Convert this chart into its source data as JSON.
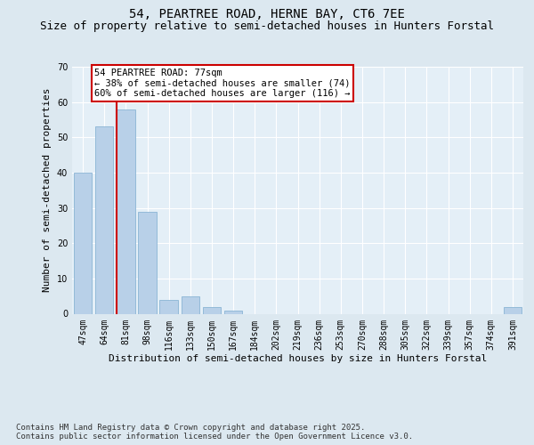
{
  "title": "54, PEARTREE ROAD, HERNE BAY, CT6 7EE",
  "subtitle": "Size of property relative to semi-detached houses in Hunters Forstal",
  "xlabel": "Distribution of semi-detached houses by size in Hunters Forstal",
  "ylabel": "Number of semi-detached properties",
  "categories": [
    "47sqm",
    "64sqm",
    "81sqm",
    "98sqm",
    "116sqm",
    "133sqm",
    "150sqm",
    "167sqm",
    "184sqm",
    "202sqm",
    "219sqm",
    "236sqm",
    "253sqm",
    "270sqm",
    "288sqm",
    "305sqm",
    "322sqm",
    "339sqm",
    "357sqm",
    "374sqm",
    "391sqm"
  ],
  "values": [
    40,
    53,
    58,
    29,
    4,
    5,
    2,
    1,
    0,
    0,
    0,
    0,
    0,
    0,
    0,
    0,
    0,
    0,
    0,
    0,
    2
  ],
  "bar_color": "#b8d0e8",
  "bar_edgecolor": "#8ab4d4",
  "vline_x_index": 2,
  "vline_color": "#cc0000",
  "annotation_line1": "54 PEARTREE ROAD: 77sqm",
  "annotation_line2": "← 38% of semi-detached houses are smaller (74)",
  "annotation_line3": "60% of semi-detached houses are larger (116) →",
  "annotation_edgecolor": "#cc0000",
  "ylim": [
    0,
    70
  ],
  "yticks": [
    0,
    10,
    20,
    30,
    40,
    50,
    60,
    70
  ],
  "bg_color": "#dce8f0",
  "plot_bg_color": "#e4eff7",
  "grid_color": "#ffffff",
  "footnote_line1": "Contains HM Land Registry data © Crown copyright and database right 2025.",
  "footnote_line2": "Contains public sector information licensed under the Open Government Licence v3.0.",
  "title_fontsize": 10,
  "subtitle_fontsize": 9,
  "xlabel_fontsize": 8,
  "ylabel_fontsize": 8,
  "tick_fontsize": 7,
  "annot_fontsize": 7.5,
  "footnote_fontsize": 6.5
}
